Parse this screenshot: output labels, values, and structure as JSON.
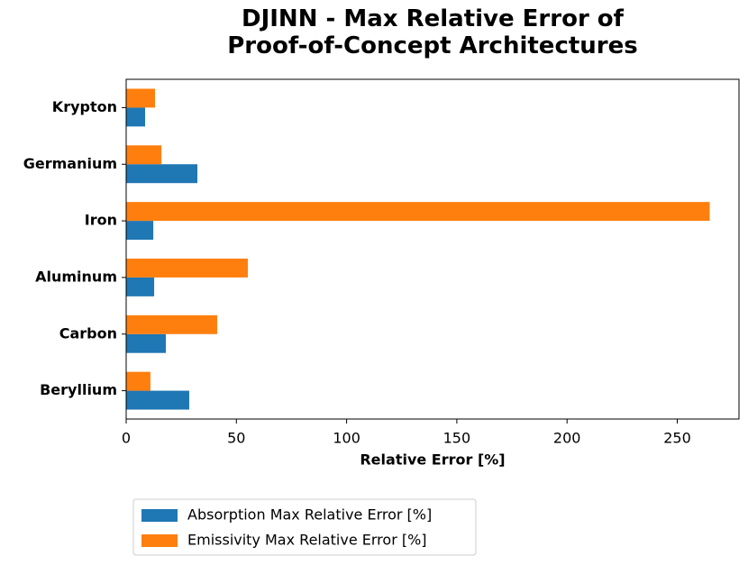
{
  "chart_data": {
    "type": "barh",
    "title": "DJINN - Max Relative Error of\n Proof-of-Concept Architectures",
    "xlabel": "Relative Error [%]",
    "categories": [
      "Beryllium",
      "Carbon",
      "Aluminum",
      "Iron",
      "Germanium",
      "Krypton"
    ],
    "series": [
      {
        "name": "Absorption Max Relative Error [%]",
        "color": "#1f77b4",
        "values": [
          28.6,
          18,
          12.7,
          12.3,
          32.3,
          8.6
        ]
      },
      {
        "name": "Emissivity Max Relative Error [%]",
        "color": "#ff7f0e",
        "values": [
          11,
          41.3,
          55.2,
          264.7,
          16,
          13.1
        ]
      }
    ],
    "xlim": [
      0,
      278
    ],
    "xticks": [
      0,
      50,
      100,
      150,
      200,
      250
    ],
    "grid": false
  }
}
